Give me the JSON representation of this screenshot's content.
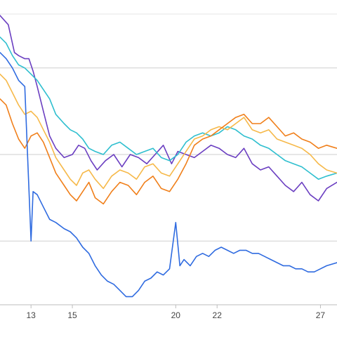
{
  "chart_data": {
    "type": "line",
    "title": "",
    "xlabel": "",
    "ylabel": "",
    "x_ticks": [
      {
        "day": 13,
        "label": "13"
      },
      {
        "day": 15,
        "label": "15"
      },
      {
        "day": 20,
        "label": "20"
      },
      {
        "day": 22,
        "label": "22"
      },
      {
        "day": 27,
        "label": "27"
      }
    ],
    "x_range": [
      11.5,
      27.8
    ],
    "y_range": [
      0,
      100
    ],
    "y_gridlines": [
      22,
      50,
      78
    ],
    "grid": true,
    "legend": "none",
    "series": [
      {
        "color": "#6b3fc1",
        "points": [
          [
            11.5,
            95
          ],
          [
            11.9,
            92
          ],
          [
            12.2,
            83
          ],
          [
            12.4,
            82
          ],
          [
            12.7,
            81
          ],
          [
            12.9,
            81
          ],
          [
            13.1,
            77
          ],
          [
            13.3,
            72
          ],
          [
            13.6,
            64
          ],
          [
            13.9,
            56
          ],
          [
            14.2,
            52
          ],
          [
            14.6,
            49
          ],
          [
            15.0,
            50
          ],
          [
            15.3,
            53
          ],
          [
            15.6,
            52
          ],
          [
            15.9,
            48
          ],
          [
            16.2,
            45
          ],
          [
            16.6,
            48
          ],
          [
            17.0,
            50
          ],
          [
            17.4,
            46
          ],
          [
            17.8,
            50
          ],
          [
            18.2,
            49
          ],
          [
            18.6,
            47
          ],
          [
            19.0,
            50
          ],
          [
            19.4,
            53
          ],
          [
            19.8,
            47
          ],
          [
            20.1,
            51
          ],
          [
            20.5,
            50
          ],
          [
            20.9,
            49
          ],
          [
            21.3,
            51
          ],
          [
            21.7,
            53
          ],
          [
            22.1,
            52
          ],
          [
            22.5,
            50
          ],
          [
            22.9,
            49
          ],
          [
            23.3,
            52
          ],
          [
            23.7,
            47
          ],
          [
            24.1,
            45
          ],
          [
            24.5,
            46
          ],
          [
            24.9,
            43
          ],
          [
            25.3,
            40
          ],
          [
            25.7,
            38
          ],
          [
            26.1,
            41
          ],
          [
            26.5,
            37
          ],
          [
            26.9,
            35
          ],
          [
            27.3,
            39
          ],
          [
            27.8,
            41
          ]
        ]
      },
      {
        "color": "#2fbfcf",
        "points": [
          [
            11.5,
            88
          ],
          [
            11.8,
            86
          ],
          [
            12.1,
            82
          ],
          [
            12.4,
            79
          ],
          [
            12.7,
            78
          ],
          [
            13.0,
            76
          ],
          [
            13.3,
            74
          ],
          [
            13.6,
            71
          ],
          [
            13.9,
            68
          ],
          [
            14.2,
            63
          ],
          [
            14.6,
            60
          ],
          [
            14.9,
            58
          ],
          [
            15.2,
            57
          ],
          [
            15.5,
            55
          ],
          [
            15.8,
            52
          ],
          [
            16.1,
            51
          ],
          [
            16.5,
            50
          ],
          [
            16.9,
            53
          ],
          [
            17.3,
            54
          ],
          [
            17.7,
            52
          ],
          [
            18.1,
            50
          ],
          [
            18.5,
            51
          ],
          [
            18.9,
            52
          ],
          [
            19.3,
            49
          ],
          [
            19.7,
            48
          ],
          [
            20.1,
            50
          ],
          [
            20.5,
            54
          ],
          [
            20.9,
            56
          ],
          [
            21.3,
            57
          ],
          [
            21.7,
            56
          ],
          [
            22.1,
            57
          ],
          [
            22.5,
            59
          ],
          [
            22.9,
            58
          ],
          [
            23.3,
            56
          ],
          [
            23.7,
            55
          ],
          [
            24.1,
            53
          ],
          [
            24.5,
            52
          ],
          [
            24.9,
            50
          ],
          [
            25.3,
            48
          ],
          [
            25.7,
            47
          ],
          [
            26.1,
            46
          ],
          [
            26.5,
            44
          ],
          [
            26.9,
            42
          ],
          [
            27.3,
            43
          ],
          [
            27.8,
            44
          ]
        ]
      },
      {
        "color": "#f6b94a",
        "points": [
          [
            11.5,
            76
          ],
          [
            11.8,
            74
          ],
          [
            12.1,
            70
          ],
          [
            12.4,
            66
          ],
          [
            12.7,
            63
          ],
          [
            13.0,
            64
          ],
          [
            13.3,
            62
          ],
          [
            13.6,
            58
          ],
          [
            13.9,
            54
          ],
          [
            14.2,
            49
          ],
          [
            14.6,
            45
          ],
          [
            14.9,
            42
          ],
          [
            15.2,
            40
          ],
          [
            15.5,
            44
          ],
          [
            15.8,
            45
          ],
          [
            16.1,
            42
          ],
          [
            16.5,
            39
          ],
          [
            16.9,
            43
          ],
          [
            17.3,
            45
          ],
          [
            17.7,
            44
          ],
          [
            18.1,
            42
          ],
          [
            18.5,
            46
          ],
          [
            18.9,
            47
          ],
          [
            19.3,
            44
          ],
          [
            19.7,
            43
          ],
          [
            20.1,
            47
          ],
          [
            20.5,
            51
          ],
          [
            20.9,
            55
          ],
          [
            21.3,
            56
          ],
          [
            21.7,
            58
          ],
          [
            22.1,
            59
          ],
          [
            22.5,
            58
          ],
          [
            22.9,
            60
          ],
          [
            23.3,
            62
          ],
          [
            23.7,
            58
          ],
          [
            24.1,
            57
          ],
          [
            24.5,
            58
          ],
          [
            24.9,
            55
          ],
          [
            25.3,
            54
          ],
          [
            25.7,
            53
          ],
          [
            26.1,
            52
          ],
          [
            26.5,
            50
          ],
          [
            26.9,
            47
          ],
          [
            27.3,
            45
          ],
          [
            27.8,
            44
          ]
        ]
      },
      {
        "color": "#f07f1a",
        "points": [
          [
            11.5,
            68
          ],
          [
            11.8,
            66
          ],
          [
            12.1,
            60
          ],
          [
            12.4,
            55
          ],
          [
            12.7,
            52
          ],
          [
            13.0,
            56
          ],
          [
            13.3,
            57
          ],
          [
            13.6,
            54
          ],
          [
            13.9,
            49
          ],
          [
            14.2,
            44
          ],
          [
            14.6,
            40
          ],
          [
            14.9,
            37
          ],
          [
            15.2,
            35
          ],
          [
            15.5,
            38
          ],
          [
            15.8,
            41
          ],
          [
            16.1,
            36
          ],
          [
            16.5,
            34
          ],
          [
            16.9,
            38
          ],
          [
            17.3,
            41
          ],
          [
            17.7,
            40
          ],
          [
            18.1,
            37
          ],
          [
            18.5,
            41
          ],
          [
            18.9,
            43
          ],
          [
            19.3,
            39
          ],
          [
            19.7,
            38
          ],
          [
            20.1,
            42
          ],
          [
            20.5,
            47
          ],
          [
            20.9,
            53
          ],
          [
            21.3,
            55
          ],
          [
            21.7,
            56
          ],
          [
            22.1,
            58
          ],
          [
            22.5,
            60
          ],
          [
            22.9,
            62
          ],
          [
            23.3,
            63
          ],
          [
            23.7,
            60
          ],
          [
            24.1,
            60
          ],
          [
            24.5,
            62
          ],
          [
            24.9,
            59
          ],
          [
            25.3,
            56
          ],
          [
            25.7,
            57
          ],
          [
            26.1,
            55
          ],
          [
            26.5,
            54
          ],
          [
            26.9,
            52
          ],
          [
            27.3,
            53
          ],
          [
            27.8,
            52
          ]
        ]
      },
      {
        "color": "#2f6be0",
        "points": [
          [
            11.5,
            83
          ],
          [
            11.8,
            81
          ],
          [
            12.1,
            78
          ],
          [
            12.4,
            74
          ],
          [
            12.7,
            72
          ],
          [
            13.0,
            22
          ],
          [
            13.1,
            38
          ],
          [
            13.3,
            37
          ],
          [
            13.6,
            33
          ],
          [
            13.9,
            29
          ],
          [
            14.2,
            28
          ],
          [
            14.6,
            26
          ],
          [
            14.9,
            25
          ],
          [
            15.2,
            23
          ],
          [
            15.5,
            20
          ],
          [
            15.8,
            18
          ],
          [
            16.1,
            14
          ],
          [
            16.4,
            11
          ],
          [
            16.7,
            9
          ],
          [
            17.0,
            8
          ],
          [
            17.3,
            6
          ],
          [
            17.6,
            4
          ],
          [
            17.9,
            4
          ],
          [
            18.2,
            6
          ],
          [
            18.5,
            9
          ],
          [
            18.8,
            10
          ],
          [
            19.1,
            12
          ],
          [
            19.4,
            11
          ],
          [
            19.7,
            13
          ],
          [
            20.0,
            28
          ],
          [
            20.2,
            14
          ],
          [
            20.4,
            16
          ],
          [
            20.7,
            14
          ],
          [
            21.0,
            17
          ],
          [
            21.3,
            18
          ],
          [
            21.6,
            17
          ],
          [
            21.9,
            19
          ],
          [
            22.2,
            20
          ],
          [
            22.5,
            19
          ],
          [
            22.8,
            18
          ],
          [
            23.1,
            19
          ],
          [
            23.4,
            19
          ],
          [
            23.7,
            18
          ],
          [
            24.0,
            18
          ],
          [
            24.3,
            17
          ],
          [
            24.6,
            16
          ],
          [
            24.9,
            15
          ],
          [
            25.2,
            14
          ],
          [
            25.5,
            14
          ],
          [
            25.8,
            13
          ],
          [
            26.1,
            13
          ],
          [
            26.4,
            12
          ],
          [
            26.7,
            12
          ],
          [
            27.0,
            13
          ],
          [
            27.3,
            14
          ],
          [
            27.8,
            15
          ]
        ]
      }
    ]
  }
}
